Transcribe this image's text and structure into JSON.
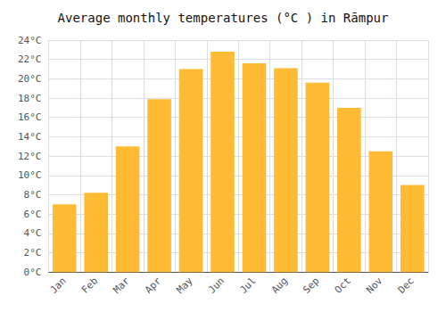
{
  "chart_data": {
    "type": "bar",
    "title": "Average monthly temperatures (°C ) in Rāmpur",
    "categories": [
      "Jan",
      "Feb",
      "Mar",
      "Apr",
      "May",
      "Jun",
      "Jul",
      "Aug",
      "Sep",
      "Oct",
      "Nov",
      "Dec"
    ],
    "values": [
      7.0,
      8.2,
      13.0,
      17.9,
      21.0,
      22.8,
      21.6,
      21.1,
      19.6,
      17.0,
      12.5,
      9.0
    ],
    "color": "#FFBB33",
    "ylim": [
      0,
      24
    ],
    "yticks": [
      {
        "value": 0,
        "label": "0°C"
      },
      {
        "value": 2,
        "label": "2°C"
      },
      {
        "value": 4,
        "label": "4°C"
      },
      {
        "value": 6,
        "label": "6°C"
      },
      {
        "value": 8,
        "label": "8°C"
      },
      {
        "value": 10,
        "label": "10°C"
      },
      {
        "value": 12,
        "label": "12°C"
      },
      {
        "value": 14,
        "label": "14°C"
      },
      {
        "value": 16,
        "label": "16°C"
      },
      {
        "value": 18,
        "label": "18°C"
      },
      {
        "value": 20,
        "label": "20°C"
      },
      {
        "value": 22,
        "label": "22°C"
      },
      {
        "value": 24,
        "label": "24°C"
      }
    ],
    "grid": true
  }
}
